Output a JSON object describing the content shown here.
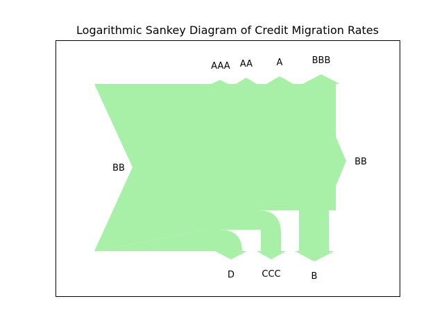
{
  "figure": {
    "title": "Logarithmic Sankey Diagram of Credit Migration Rates",
    "flow_color": "#a8f0a8",
    "source_label": "BB",
    "outputs": [
      {
        "key": "aaa",
        "label": "AAA"
      },
      {
        "key": "aa",
        "label": "AA"
      },
      {
        "key": "a",
        "label": "A"
      },
      {
        "key": "bbb",
        "label": "BBB"
      },
      {
        "key": "bb",
        "label": "BB"
      },
      {
        "key": "b",
        "label": "B"
      },
      {
        "key": "ccc",
        "label": "CCC"
      },
      {
        "key": "d",
        "label": "D"
      }
    ]
  }
}
